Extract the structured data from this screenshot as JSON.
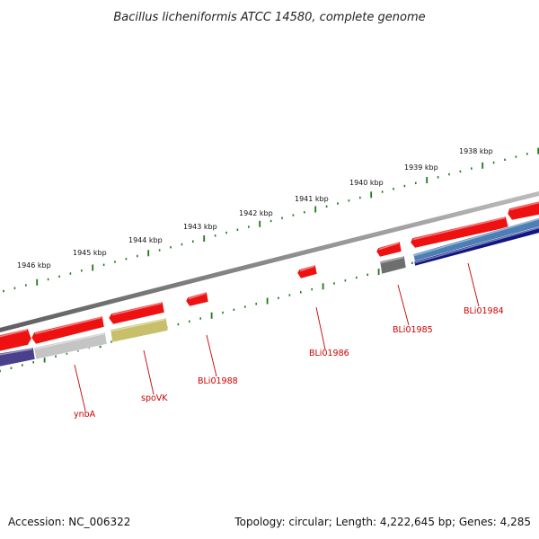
{
  "title": "Bacillus licheniformis ATCC 14580, complete genome",
  "colors": {
    "backbone": "#8a8a8a",
    "tick": "#1a7a1a",
    "gene_red": "#ee1111",
    "gene_gray_light": "#c4c4c4",
    "gene_gray_dark": "#6e6e6e",
    "gene_olive": "#c8bf6a",
    "gene_purple": "#4a3f8a",
    "gene_steel": "#4d7fb5",
    "gene_navy": "#101880",
    "label": "#cc0000"
  },
  "kbp_ticks": [
    "1946 kbp",
    "1945 kbp",
    "1944 kbp",
    "1943 kbp",
    "1942 kbp",
    "1941 kbp",
    "1940 kbp",
    "1939 kbp",
    "1938 kbp"
  ],
  "gene_labels": [
    "ynbA",
    "spoVK",
    "BLi01988",
    "BLi01986",
    "BLi01985",
    "BLi01984"
  ],
  "footer": {
    "accession": "Accession: NC_006322",
    "summary": "Topology: circular; Length: 4,222,645 bp; Genes: 4,285"
  }
}
